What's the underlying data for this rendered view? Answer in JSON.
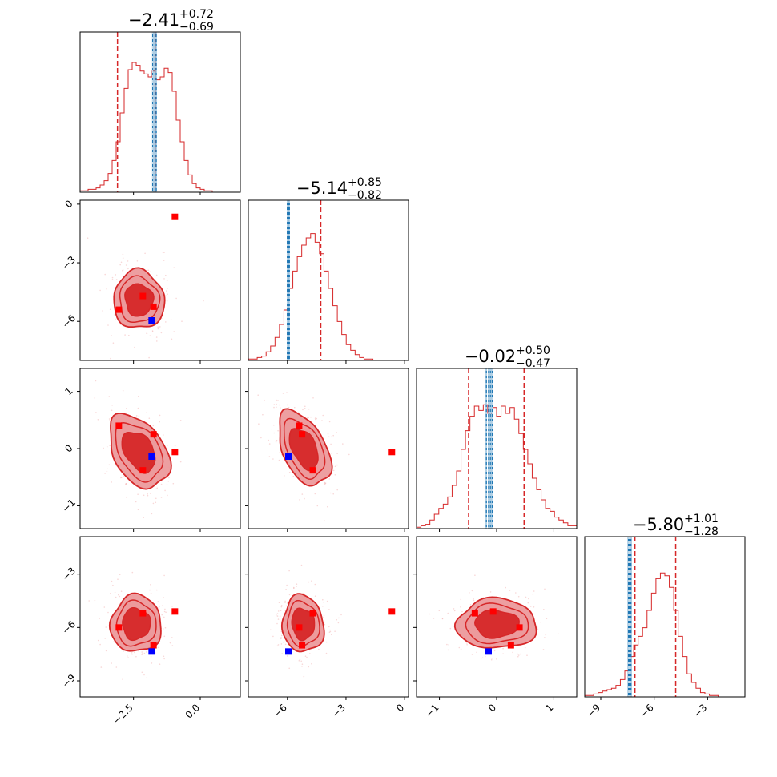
{
  "chart_data": {
    "type": "corner",
    "description": "Corner plot of a 4-parameter posterior: 1D marginal histograms on the diagonal with title values, 2D density contours below the diagonal with marker points.",
    "colors": {
      "posterior": "#d62728",
      "posterior_fill_outer": "#ec9a9c",
      "truth_line": "#1f77b4",
      "marker_red": "#ff0000",
      "marker_blue": "#0000ff"
    },
    "parameters": [
      {
        "id": "p1",
        "range": [
          -4.5,
          1.5
        ],
        "ticks": [
          -2.5,
          0.0
        ],
        "tick_labels": [
          "−2.5",
          "0.0"
        ],
        "title": {
          "median": "−2.41",
          "plus": "+0.72",
          "minus": "−0.69"
        },
        "quantiles": [
          -3.1,
          -2.41,
          -1.69
        ],
        "truth_lines": [
          -1.78,
          -1.7,
          -1.65
        ],
        "histogram": [
          0.01,
          0.01,
          0.02,
          0.02,
          0.03,
          0.05,
          0.08,
          0.13,
          0.22,
          0.35,
          0.55,
          0.72,
          0.85,
          0.9,
          0.88,
          0.84,
          0.82,
          0.8,
          0.84,
          0.78,
          0.8,
          0.86,
          0.83,
          0.7,
          0.5,
          0.35,
          0.22,
          0.12,
          0.06,
          0.03,
          0.02,
          0.01,
          0.01,
          0,
          0,
          0,
          0,
          0,
          0,
          0
        ]
      },
      {
        "id": "p2",
        "range": [
          -8,
          0.2
        ],
        "ticks": [
          -6,
          -3,
          0
        ],
        "tick_labels": [
          "−6",
          "−3",
          "0"
        ],
        "title": {
          "median": "−5.14",
          "plus": "+0.85",
          "minus": "−0.82"
        },
        "quantiles": [
          -5.96,
          -5.14,
          -4.29
        ],
        "truth_lines": [
          -6.0,
          -5.95,
          -5.9
        ],
        "histogram": [
          0.01,
          0.01,
          0.02,
          0.03,
          0.06,
          0.1,
          0.16,
          0.25,
          0.35,
          0.5,
          0.62,
          0.72,
          0.8,
          0.85,
          0.88,
          0.82,
          0.74,
          0.62,
          0.5,
          0.38,
          0.27,
          0.18,
          0.11,
          0.07,
          0.04,
          0.02,
          0.01,
          0.01,
          0,
          0,
          0,
          0,
          0,
          0,
          0,
          0
        ]
      },
      {
        "id": "p3",
        "range": [
          -1.4,
          1.4
        ],
        "ticks": [
          -1,
          0,
          1
        ],
        "tick_labels": [
          "−1",
          "0",
          "1"
        ],
        "title": {
          "median": "−0.02",
          "plus": "+0.50",
          "minus": "−0.47"
        },
        "quantiles": [
          -0.49,
          -0.02,
          0.48
        ],
        "truth_lines": [
          -0.18,
          -0.14,
          -0.11,
          -0.08
        ],
        "histogram": [
          0.01,
          0.02,
          0.03,
          0.06,
          0.1,
          0.14,
          0.17,
          0.22,
          0.3,
          0.4,
          0.55,
          0.68,
          0.78,
          0.85,
          0.82,
          0.86,
          0.8,
          0.84,
          0.78,
          0.85,
          0.8,
          0.84,
          0.76,
          0.66,
          0.55,
          0.45,
          0.35,
          0.27,
          0.2,
          0.14,
          0.12,
          0.08,
          0.06,
          0.04,
          0.02,
          0.02
        ]
      },
      {
        "id": "p4",
        "range": [
          -9.9,
          -0.9
        ],
        "ticks": [
          -9,
          -6,
          -3
        ],
        "tick_labels": [
          "−9",
          "−6",
          "−3"
        ],
        "title": {
          "median": "−5.80",
          "plus": "+1.01",
          "minus": "−1.28"
        },
        "quantiles": [
          -7.08,
          -5.8,
          -4.79
        ],
        "truth_lines": [
          -7.45,
          -7.4,
          -7.35,
          -7.3
        ],
        "histogram": [
          0.01,
          0.01,
          0.02,
          0.03,
          0.04,
          0.05,
          0.06,
          0.08,
          0.12,
          0.18,
          0.28,
          0.36,
          0.42,
          0.48,
          0.6,
          0.72,
          0.82,
          0.86,
          0.84,
          0.76,
          0.6,
          0.42,
          0.28,
          0.16,
          0.1,
          0.06,
          0.03,
          0.02,
          0.01,
          0.01,
          0,
          0,
          0,
          0,
          0,
          0
        ]
      }
    ],
    "joint_panels": [
      {
        "row": 1,
        "col": 0,
        "center": [
          -2.3,
          -4.9
        ],
        "spread": [
          0.95,
          1.5
        ],
        "tilt": 0.1
      },
      {
        "row": 2,
        "col": 0,
        "center": [
          -2.3,
          -0.05
        ],
        "spread": [
          0.95,
          0.7
        ],
        "tilt": 0.55
      },
      {
        "row": 2,
        "col": 1,
        "center": [
          -5.15,
          0.0
        ],
        "spread": [
          1.1,
          0.7
        ],
        "tilt": 0.45
      },
      {
        "row": 3,
        "col": 0,
        "center": [
          -2.4,
          -5.8
        ],
        "spread": [
          0.95,
          1.6
        ],
        "tilt": -0.05
      },
      {
        "row": 3,
        "col": 1,
        "center": [
          -5.2,
          -5.8
        ],
        "spread": [
          1.05,
          1.6
        ],
        "tilt": 0.1
      },
      {
        "row": 3,
        "col": 2,
        "center": [
          0.0,
          -5.8
        ],
        "spread": [
          0.7,
          1.4
        ],
        "tilt": 0.0
      }
    ],
    "markers": {
      "red": [
        [
          -3.05,
          -5.4,
          0.4,
          -6.0
        ],
        [
          -2.15,
          -4.7,
          -0.38,
          -5.2
        ],
        [
          -1.75,
          -5.25,
          0.25,
          -7.0
        ],
        [
          -0.95,
          -0.65,
          -0.06,
          -5.1
        ]
      ],
      "blue": [
        [
          -1.82,
          -5.95,
          -0.14,
          -7.35
        ]
      ]
    }
  }
}
